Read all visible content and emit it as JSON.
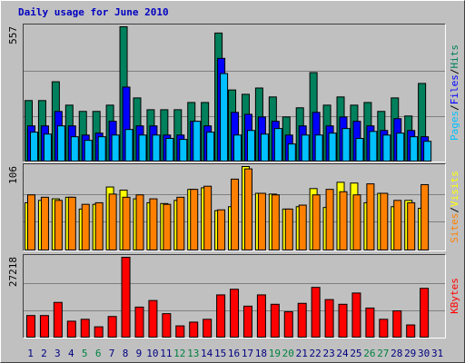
{
  "title": "Daily usage for June 2010",
  "chart_data": [
    {
      "type": "bar",
      "ylim": [
        0,
        557
      ],
      "yticks": [
        557
      ],
      "legend_separator": "/",
      "categories": [
        "1",
        "2",
        "3",
        "4",
        "5",
        "6",
        "7",
        "8",
        "9",
        "10",
        "11",
        "12",
        "13",
        "14",
        "15",
        "16",
        "17",
        "18",
        "19",
        "20",
        "21",
        "22",
        "23",
        "24",
        "25",
        "26",
        "27",
        "28",
        "29",
        "30",
        "31"
      ],
      "category_colors": [
        "#000080",
        "#000080",
        "#000080",
        "#000080",
        "#008040",
        "#008040",
        "#000080",
        "#000080",
        "#000080",
        "#000080",
        "#000080",
        "#008040",
        "#008040",
        "#000080",
        "#000080",
        "#000080",
        "#000080",
        "#000080",
        "#008040",
        "#008040",
        "#000080",
        "#000080",
        "#000080",
        "#000080",
        "#000080",
        "#008040",
        "#008040",
        "#000080",
        "#000080",
        "#000080",
        "#000080"
      ],
      "series": [
        {
          "name": "Hits",
          "color": "#00805c",
          "values": [
            251,
            251,
            329,
            232,
            206,
            206,
            232,
            557,
            262,
            213,
            213,
            213,
            243,
            243,
            531,
            295,
            277,
            303,
            266,
            183,
            221,
            367,
            232,
            266,
            232,
            243,
            206,
            262,
            187,
            322,
            0
          ]
        },
        {
          "name": "Files",
          "color": "#0000ff",
          "values": [
            146,
            146,
            206,
            146,
            108,
            116,
            165,
            307,
            146,
            146,
            108,
            108,
            165,
            146,
            426,
            202,
            194,
            183,
            165,
            108,
            146,
            202,
            146,
            183,
            165,
            146,
            127,
            176,
            127,
            101,
            0
          ]
        },
        {
          "name": "Pages",
          "color": "#00c0ff",
          "values": [
            120,
            112,
            146,
            101,
            86,
            101,
            108,
            131,
            108,
            108,
            94,
            90,
            165,
            120,
            363,
            108,
            127,
            112,
            135,
            71,
            108,
            108,
            116,
            135,
            94,
            123,
            108,
            116,
            101,
            82,
            0
          ]
        }
      ]
    },
    {
      "type": "bar",
      "ylim": [
        0,
        106
      ],
      "yticks": [
        106
      ],
      "legend_separator": "/",
      "series": [
        {
          "name": "Visits",
          "color": "#ffff00",
          "values": [
            60,
            63,
            65,
            67,
            52,
            58,
            80,
            76,
            65,
            60,
            59,
            63,
            77,
            79,
            50,
            55,
            106,
            72,
            71,
            52,
            55,
            78,
            54,
            86,
            85,
            60,
            72,
            55,
            63,
            53,
            0
          ]
        },
        {
          "name": "Sites",
          "color": "#ff8000",
          "values": [
            70,
            67,
            63,
            67,
            58,
            60,
            71,
            67,
            70,
            65,
            58,
            67,
            77,
            81,
            51,
            90,
            103,
            72,
            70,
            52,
            57,
            70,
            77,
            74,
            70,
            84,
            72,
            63,
            60,
            83,
            0
          ]
        }
      ]
    },
    {
      "type": "bar",
      "ylim": [
        0,
        27218
      ],
      "yticks": [
        27218
      ],
      "series": [
        {
          "name": "KBytes",
          "color": "#ff0000",
          "values": [
            7360,
            7360,
            11840,
            5440,
            6080,
            3520,
            7040,
            27218,
            10240,
            12480,
            8000,
            3840,
            5120,
            6080,
            14400,
            16320,
            10560,
            14400,
            11200,
            8640,
            11520,
            16960,
            12800,
            11200,
            15040,
            9920,
            6080,
            8960,
            4160,
            16640,
            0
          ]
        }
      ]
    }
  ]
}
